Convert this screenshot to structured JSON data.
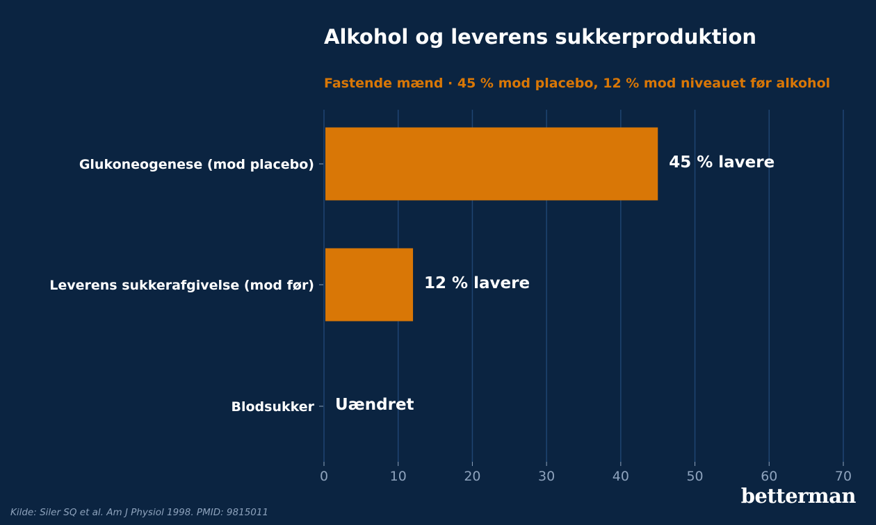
{
  "colors": {
    "background": "#0b2441",
    "bar": "#d97706",
    "subtitle": "#d97706",
    "grid": "#1f4572",
    "tick_text": "#8ea3bd",
    "label_text": "#ffffff"
  },
  "header": {
    "title": "Alkohol og leverens sukkerproduktion",
    "subtitle": "Fastende mænd · 45 % mod placebo, 12 % mod niveauet før alkohol"
  },
  "footer": {
    "source": "Kilde: Siler SQ et al. Am J Physiol 1998. PMID: 9815011",
    "logo": "betterman"
  },
  "chart_data": {
    "type": "bar",
    "orientation": "horizontal",
    "categories": [
      "Glukoneogenese (mod placebo)",
      "Leverens sukkerafgivelse (mod før)",
      "Blodsukker"
    ],
    "values": [
      45,
      12,
      0
    ],
    "data_labels": [
      "45 % lavere",
      "12 % lavere",
      "Uændret"
    ],
    "xlim": [
      0,
      70
    ],
    "xticks": [
      0,
      10,
      20,
      30,
      40,
      50,
      60,
      70
    ],
    "grid": "vertical",
    "xlabel": "",
    "ylabel": ""
  }
}
